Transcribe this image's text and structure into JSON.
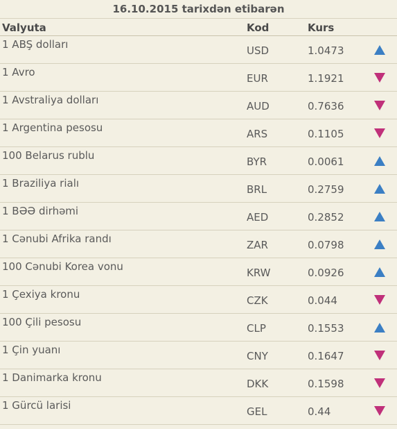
{
  "title": "16.10.2015 tarixdən etibarən",
  "headers": {
    "currency": "Valyuta",
    "code": "Kod",
    "rate": "Kurs"
  },
  "colors": {
    "up": "#3b7fc4",
    "down": "#c0307a"
  },
  "rows": [
    {
      "name": "1 ABŞ dolları",
      "code": "USD",
      "rate": "1.0473",
      "trend": "up"
    },
    {
      "name": "1 Avro",
      "code": "EUR",
      "rate": "1.1921",
      "trend": "down"
    },
    {
      "name": "1 Avstraliya dolları",
      "code": "AUD",
      "rate": "0.7636",
      "trend": "down"
    },
    {
      "name": "1 Argentina pesosu",
      "code": "ARS",
      "rate": "0.1105",
      "trend": "down"
    },
    {
      "name": "100 Belarus rublu",
      "code": "BYR",
      "rate": "0.0061",
      "trend": "up"
    },
    {
      "name": "1 Braziliya rialı",
      "code": "BRL",
      "rate": "0.2759",
      "trend": "up"
    },
    {
      "name": "1 BƏƏ dirhəmi",
      "code": "AED",
      "rate": "0.2852",
      "trend": "up"
    },
    {
      "name": "1 Cənubi Afrika randı",
      "code": "ZAR",
      "rate": "0.0798",
      "trend": "up"
    },
    {
      "name": "100 Cənubi Korea vonu",
      "code": "KRW",
      "rate": "0.0926",
      "trend": "up"
    },
    {
      "name": "1 Çexiya kronu",
      "code": "CZK",
      "rate": "0.044",
      "trend": "down"
    },
    {
      "name": "100 Çili pesosu",
      "code": "CLP",
      "rate": "0.1553",
      "trend": "up"
    },
    {
      "name": "1 Çin yuanı",
      "code": "CNY",
      "rate": "0.1647",
      "trend": "down"
    },
    {
      "name": "1 Danimarka kronu",
      "code": "DKK",
      "rate": "0.1598",
      "trend": "down"
    },
    {
      "name": "1 Gürcü larisi",
      "code": "GEL",
      "rate": "0.44",
      "trend": "down"
    }
  ]
}
